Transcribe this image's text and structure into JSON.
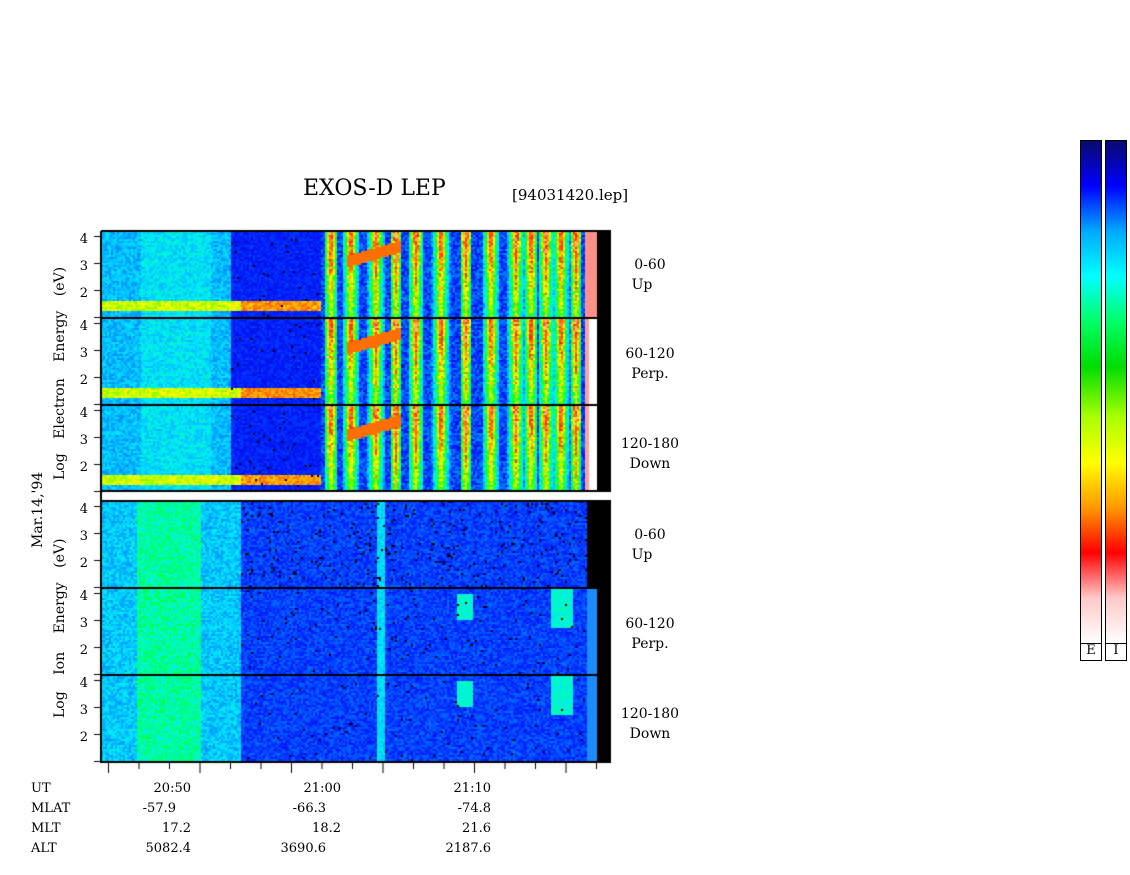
{
  "header": {
    "title": "EXOS-D LEP",
    "file": "[94031420.lep]"
  },
  "axis_labels": {
    "electron": [
      "Log",
      "Electron",
      "Energy",
      "(eV)"
    ],
    "ion": [
      "Log",
      "Ion",
      "Energy",
      "(eV)"
    ],
    "date": "Mar.14,'94"
  },
  "panel_labels": [
    {
      "angle": "0-60",
      "dir": "Up"
    },
    {
      "angle": "60-120",
      "dir": "Perp."
    },
    {
      "angle": "120-180",
      "dir": "Down"
    },
    {
      "angle": "0-60",
      "dir": "Up"
    },
    {
      "angle": "60-120",
      "dir": "Perp."
    },
    {
      "angle": "120-180",
      "dir": "Down"
    }
  ],
  "colorbar": {
    "labels": [
      "E",
      "I"
    ],
    "stops": [
      "#0a0a6e",
      "#0000ff",
      "#00aaff",
      "#00ffff",
      "#00ff66",
      "#00dd00",
      "#aaff00",
      "#ffff00",
      "#ff9900",
      "#ff0000",
      "#ffc8c8",
      "#ffffff"
    ]
  },
  "chart_data": {
    "type": "heatmap",
    "title": "EXOS-D LEP",
    "yticks": [
      "4",
      "3",
      "2"
    ],
    "xticks": [
      "20:50",
      "21:00",
      "21:10"
    ],
    "orbit_rows": [
      {
        "name": "UT",
        "values": [
          "20:50",
          "21:00",
          "21:10"
        ]
      },
      {
        "name": "MLAT",
        "values": [
          "-57.9",
          "-66.3",
          "-74.8"
        ]
      },
      {
        "name": "MLT",
        "values": [
          "17.2",
          "18.2",
          "21.6"
        ]
      },
      {
        "name": "ALT",
        "values": [
          "5082.4",
          "3690.6",
          "2187.6"
        ]
      }
    ]
  }
}
